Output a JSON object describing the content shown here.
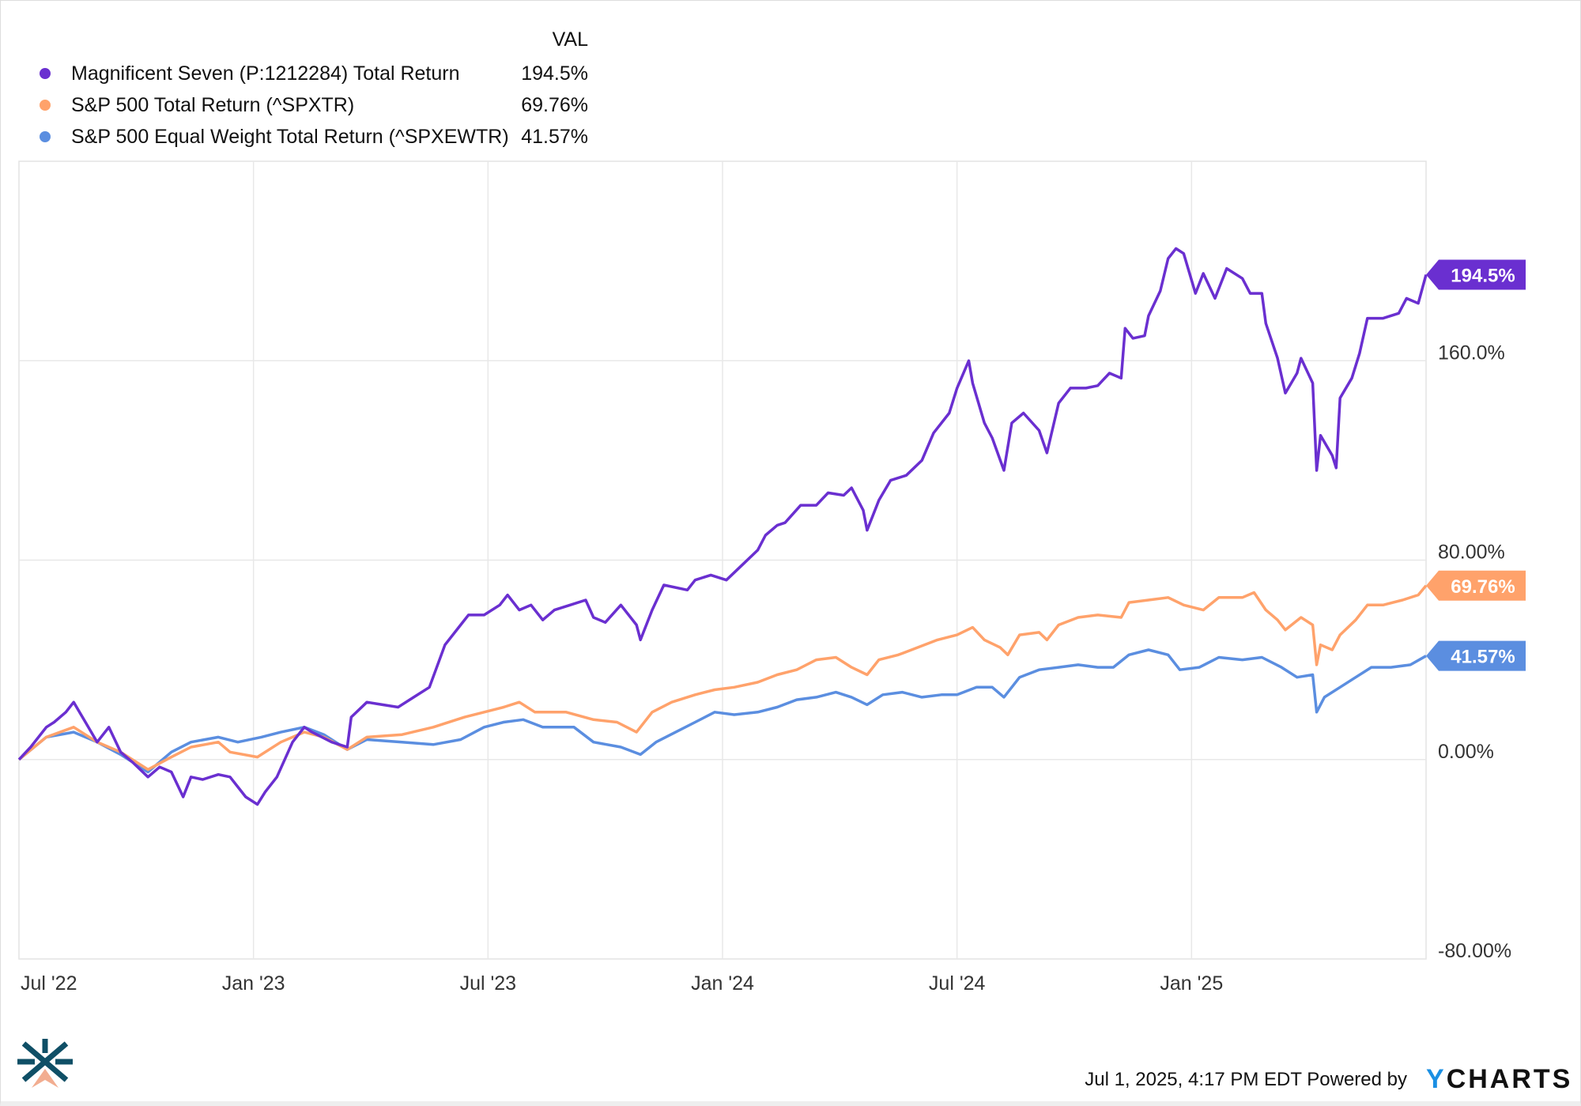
{
  "legend": {
    "value_header": "VAL",
    "items": [
      {
        "label": "Magnificent Seven (P:1212284) Total Return",
        "value": "194.5%",
        "color": "#6a2fd0"
      },
      {
        "label": "S&P 500 Total Return (^SPXTR)",
        "value": "69.76%",
        "color": "#ffa26b"
      },
      {
        "label": "S&P 500 Equal Weight Total Return (^SPXEWTR)",
        "value": "41.57%",
        "color": "#5b8ee0"
      }
    ]
  },
  "footer": {
    "timestamp": "Jul 1, 2025, 4:17 PM EDT Powered by",
    "brand_y": "Y",
    "brand_rest": "CHARTS"
  },
  "chart_data": {
    "type": "line",
    "title": "",
    "xlabel": "",
    "ylabel": "",
    "x_unit": "months since Jul 1, 2022",
    "xlim": [
      0,
      36
    ],
    "ylim": [
      -80,
      240
    ],
    "grid": true,
    "legend_position": "top-left",
    "x_ticks": [
      {
        "m": 0,
        "label": "Jul '22"
      },
      {
        "m": 6,
        "label": "Jan '23"
      },
      {
        "m": 12,
        "label": "Jul '23"
      },
      {
        "m": 18,
        "label": "Jan '24"
      },
      {
        "m": 24,
        "label": "Jul '24"
      },
      {
        "m": 30,
        "label": "Jan '25"
      }
    ],
    "y_ticks": [
      {
        "v": 160,
        "label": "160.0%"
      },
      {
        "v": 80,
        "label": "80.00%"
      },
      {
        "v": 0,
        "label": "0.00%"
      },
      {
        "v": -80,
        "label": "-80.00%"
      }
    ],
    "series": [
      {
        "name": "Magnificent Seven (P:1212284) Total Return",
        "color": "#6a2fd0",
        "end_label": "194.5%",
        "points": [
          [
            0,
            0
          ],
          [
            0.3,
            5
          ],
          [
            0.7,
            13
          ],
          [
            0.9,
            15
          ],
          [
            1.2,
            19
          ],
          [
            1.4,
            23
          ],
          [
            1.7,
            15
          ],
          [
            2.0,
            7
          ],
          [
            2.3,
            13
          ],
          [
            2.6,
            3
          ],
          [
            2.9,
            -1
          ],
          [
            3.3,
            -7
          ],
          [
            3.6,
            -3
          ],
          [
            3.9,
            -5
          ],
          [
            4.2,
            -15
          ],
          [
            4.4,
            -7
          ],
          [
            4.7,
            -8
          ],
          [
            5.1,
            -6
          ],
          [
            5.4,
            -7
          ],
          [
            5.8,
            -15
          ],
          [
            6.1,
            -18
          ],
          [
            6.3,
            -13
          ],
          [
            6.6,
            -7
          ],
          [
            7.0,
            7
          ],
          [
            7.3,
            13
          ],
          [
            7.5,
            11
          ],
          [
            8.0,
            7
          ],
          [
            8.4,
            5
          ],
          [
            8.5,
            17
          ],
          [
            8.9,
            23
          ],
          [
            9.3,
            22
          ],
          [
            9.7,
            21
          ],
          [
            10.1,
            25
          ],
          [
            10.5,
            29
          ],
          [
            10.9,
            46
          ],
          [
            11.3,
            54
          ],
          [
            11.5,
            58
          ],
          [
            11.9,
            58
          ],
          [
            12.3,
            62
          ],
          [
            12.5,
            66
          ],
          [
            12.8,
            60
          ],
          [
            13.1,
            62
          ],
          [
            13.4,
            56
          ],
          [
            13.7,
            60
          ],
          [
            14.1,
            62
          ],
          [
            14.5,
            64
          ],
          [
            14.7,
            57
          ],
          [
            15.0,
            55
          ],
          [
            15.4,
            62
          ],
          [
            15.8,
            54
          ],
          [
            15.9,
            48
          ],
          [
            16.2,
            60
          ],
          [
            16.5,
            70
          ],
          [
            17.1,
            68
          ],
          [
            17.3,
            72
          ],
          [
            17.7,
            74
          ],
          [
            18.1,
            72
          ],
          [
            18.5,
            78
          ],
          [
            18.9,
            84
          ],
          [
            19.1,
            90
          ],
          [
            19.4,
            94
          ],
          [
            19.6,
            95
          ],
          [
            20.0,
            102
          ],
          [
            20.4,
            102
          ],
          [
            20.7,
            107
          ],
          [
            21.1,
            106
          ],
          [
            21.3,
            109
          ],
          [
            21.6,
            100
          ],
          [
            21.7,
            92
          ],
          [
            22.0,
            104
          ],
          [
            22.3,
            112
          ],
          [
            22.7,
            114
          ],
          [
            23.1,
            120
          ],
          [
            23.4,
            131
          ],
          [
            23.8,
            139
          ],
          [
            24.0,
            149
          ],
          [
            24.3,
            160
          ],
          [
            24.4,
            151
          ],
          [
            24.7,
            135
          ],
          [
            24.9,
            129
          ],
          [
            25.2,
            116
          ],
          [
            25.4,
            135
          ],
          [
            25.7,
            139
          ],
          [
            26.1,
            132
          ],
          [
            26.3,
            123
          ],
          [
            26.6,
            143
          ],
          [
            26.9,
            149
          ],
          [
            27.3,
            149
          ],
          [
            27.6,
            150
          ],
          [
            27.9,
            155
          ],
          [
            28.2,
            153
          ],
          [
            28.3,
            173
          ],
          [
            28.5,
            169
          ],
          [
            28.8,
            170
          ],
          [
            28.9,
            178
          ],
          [
            29.2,
            188
          ],
          [
            29.4,
            201
          ],
          [
            29.6,
            205
          ],
          [
            29.8,
            203
          ],
          [
            30.1,
            187
          ],
          [
            30.3,
            195
          ],
          [
            30.6,
            185
          ],
          [
            30.9,
            197
          ],
          [
            31.3,
            193
          ],
          [
            31.5,
            187
          ],
          [
            31.8,
            187
          ],
          [
            31.9,
            175
          ],
          [
            32.2,
            161
          ],
          [
            32.4,
            147
          ],
          [
            32.7,
            155
          ],
          [
            32.8,
            161
          ],
          [
            33.1,
            151
          ],
          [
            33.2,
            116
          ],
          [
            33.3,
            130
          ],
          [
            33.6,
            122
          ],
          [
            33.7,
            117
          ],
          [
            33.8,
            145
          ],
          [
            34.1,
            153
          ],
          [
            34.3,
            163
          ],
          [
            34.5,
            177
          ],
          [
            34.9,
            177
          ],
          [
            35.3,
            179
          ],
          [
            35.5,
            185
          ],
          [
            35.8,
            183
          ],
          [
            36.0,
            194.5
          ]
        ]
      },
      {
        "name": "S&P 500 Total Return (^SPXTR)",
        "color": "#ffa26b",
        "end_label": "69.76%",
        "points": [
          [
            0,
            0
          ],
          [
            0.7,
            9
          ],
          [
            1.4,
            13
          ],
          [
            2.0,
            7
          ],
          [
            2.6,
            3
          ],
          [
            3.3,
            -4
          ],
          [
            3.9,
            1
          ],
          [
            4.4,
            5
          ],
          [
            5.1,
            7
          ],
          [
            5.4,
            3
          ],
          [
            6.1,
            1
          ],
          [
            6.7,
            7
          ],
          [
            7.3,
            11
          ],
          [
            7.8,
            9
          ],
          [
            8.4,
            4
          ],
          [
            8.9,
            9
          ],
          [
            9.8,
            10
          ],
          [
            10.6,
            13
          ],
          [
            11.4,
            17
          ],
          [
            11.9,
            19
          ],
          [
            12.4,
            21
          ],
          [
            12.8,
            23
          ],
          [
            13.2,
            19
          ],
          [
            14.0,
            19
          ],
          [
            14.7,
            16
          ],
          [
            15.3,
            15
          ],
          [
            15.8,
            11
          ],
          [
            16.2,
            19
          ],
          [
            16.7,
            23
          ],
          [
            17.3,
            26
          ],
          [
            17.8,
            28
          ],
          [
            18.3,
            29
          ],
          [
            18.9,
            31
          ],
          [
            19.4,
            34
          ],
          [
            19.9,
            36
          ],
          [
            20.4,
            40
          ],
          [
            20.9,
            41
          ],
          [
            21.3,
            37
          ],
          [
            21.7,
            34
          ],
          [
            22.0,
            40
          ],
          [
            22.5,
            42
          ],
          [
            23.0,
            45
          ],
          [
            23.5,
            48
          ],
          [
            24.0,
            50
          ],
          [
            24.4,
            53
          ],
          [
            24.7,
            48
          ],
          [
            25.1,
            45
          ],
          [
            25.3,
            42
          ],
          [
            25.6,
            50
          ],
          [
            26.1,
            51
          ],
          [
            26.3,
            48
          ],
          [
            26.6,
            54
          ],
          [
            27.1,
            57
          ],
          [
            27.6,
            58
          ],
          [
            28.2,
            57
          ],
          [
            28.4,
            63
          ],
          [
            28.9,
            64
          ],
          [
            29.4,
            65
          ],
          [
            29.8,
            62
          ],
          [
            30.3,
            60
          ],
          [
            30.7,
            65
          ],
          [
            31.3,
            65
          ],
          [
            31.6,
            67
          ],
          [
            31.9,
            60
          ],
          [
            32.2,
            56
          ],
          [
            32.4,
            52
          ],
          [
            32.8,
            57
          ],
          [
            33.1,
            54
          ],
          [
            33.2,
            38
          ],
          [
            33.3,
            46
          ],
          [
            33.6,
            44
          ],
          [
            33.8,
            50
          ],
          [
            34.2,
            56
          ],
          [
            34.5,
            62
          ],
          [
            34.9,
            62
          ],
          [
            35.4,
            64
          ],
          [
            35.8,
            66
          ],
          [
            36.0,
            69.76
          ]
        ]
      },
      {
        "name": "S&P 500 Equal Weight Total Return (^SPXEWTR)",
        "color": "#5b8ee0",
        "end_label": "41.57%",
        "points": [
          [
            0,
            0
          ],
          [
            0.7,
            9
          ],
          [
            1.4,
            11
          ],
          [
            2.0,
            7
          ],
          [
            2.6,
            2
          ],
          [
            3.3,
            -5
          ],
          [
            3.9,
            3
          ],
          [
            4.4,
            7
          ],
          [
            5.1,
            9
          ],
          [
            5.6,
            7
          ],
          [
            6.2,
            9
          ],
          [
            6.7,
            11
          ],
          [
            7.3,
            13
          ],
          [
            7.8,
            10
          ],
          [
            8.4,
            4
          ],
          [
            8.9,
            8
          ],
          [
            9.8,
            7
          ],
          [
            10.6,
            6
          ],
          [
            11.3,
            8
          ],
          [
            11.9,
            13
          ],
          [
            12.4,
            15
          ],
          [
            12.9,
            16
          ],
          [
            13.4,
            13
          ],
          [
            14.2,
            13
          ],
          [
            14.7,
            7
          ],
          [
            15.4,
            5
          ],
          [
            15.9,
            2
          ],
          [
            16.3,
            7
          ],
          [
            16.8,
            11
          ],
          [
            17.3,
            15
          ],
          [
            17.8,
            19
          ],
          [
            18.3,
            18
          ],
          [
            18.9,
            19
          ],
          [
            19.4,
            21
          ],
          [
            19.9,
            24
          ],
          [
            20.4,
            25
          ],
          [
            20.9,
            27
          ],
          [
            21.3,
            25
          ],
          [
            21.7,
            22
          ],
          [
            22.1,
            26
          ],
          [
            22.6,
            27
          ],
          [
            23.1,
            25
          ],
          [
            23.6,
            26
          ],
          [
            24.0,
            26
          ],
          [
            24.5,
            29
          ],
          [
            24.9,
            29
          ],
          [
            25.2,
            25
          ],
          [
            25.6,
            33
          ],
          [
            26.1,
            36
          ],
          [
            26.6,
            37
          ],
          [
            27.1,
            38
          ],
          [
            27.6,
            37
          ],
          [
            28.0,
            37
          ],
          [
            28.4,
            42
          ],
          [
            28.9,
            44
          ],
          [
            29.4,
            42
          ],
          [
            29.7,
            36
          ],
          [
            30.2,
            37
          ],
          [
            30.7,
            41
          ],
          [
            31.3,
            40
          ],
          [
            31.8,
            41
          ],
          [
            32.3,
            37
          ],
          [
            32.7,
            33
          ],
          [
            33.1,
            34
          ],
          [
            33.2,
            19
          ],
          [
            33.4,
            25
          ],
          [
            33.8,
            29
          ],
          [
            34.2,
            33
          ],
          [
            34.6,
            37
          ],
          [
            35.1,
            37
          ],
          [
            35.6,
            38
          ],
          [
            36.0,
            41.57
          ]
        ]
      }
    ]
  }
}
